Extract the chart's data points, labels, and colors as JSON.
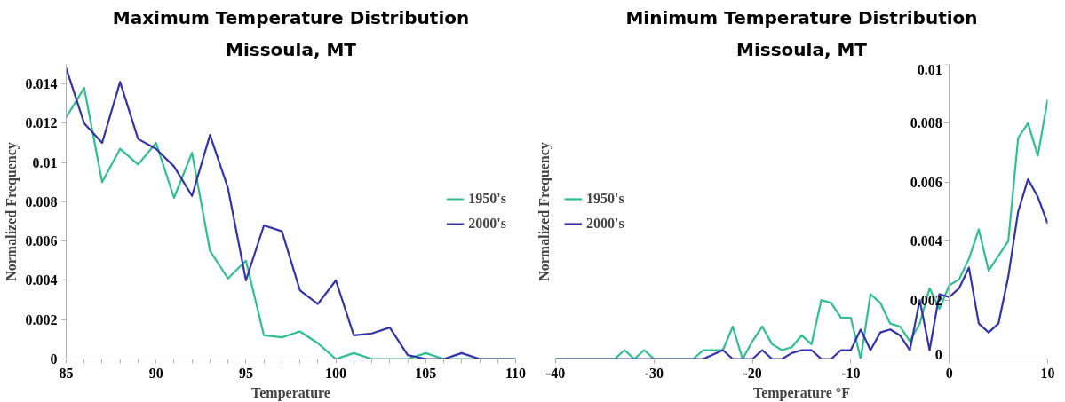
{
  "chart_data": [
    {
      "type": "line",
      "title": "Maximum Temperature Distribution",
      "subtitle": "Missoula, MT",
      "xlabel": "Temperature",
      "ylabel": "Normalized Frequency",
      "x": [
        85,
        86,
        87,
        88,
        89,
        90,
        91,
        92,
        93,
        94,
        95,
        96,
        97,
        98,
        99,
        100,
        101,
        102,
        103,
        104,
        105,
        106,
        107,
        108,
        110
      ],
      "series": [
        {
          "name": "1950's",
          "color": "#2ebf91",
          "values": [
            0.0123,
            0.0138,
            0.009,
            0.0107,
            0.0099,
            0.011,
            0.0082,
            0.0105,
            0.0055,
            0.0041,
            0.005,
            0.0012,
            0.0011,
            0.0014,
            0.0008,
            0,
            0.0003,
            0,
            0,
            0,
            0.0003,
            0,
            0,
            0,
            0
          ]
        },
        {
          "name": "2000's",
          "color": "#3333aa",
          "values": [
            0.0148,
            0.012,
            0.011,
            0.0141,
            0.0112,
            0.0107,
            0.0098,
            0.0083,
            0.0114,
            0.0087,
            0.004,
            0.0068,
            0.0065,
            0.0035,
            0.0028,
            0.004,
            0.0012,
            0.0013,
            0.0016,
            0.0002,
            0,
            0,
            0.0003,
            0,
            0
          ]
        }
      ],
      "xlim": [
        85,
        110
      ],
      "ylim": [
        0,
        0.015
      ],
      "xticks": [
        85,
        {
          "value": 86,
          "label": null
        },
        {
          "value": 87,
          "label": null
        },
        {
          "value": 88,
          "label": null
        },
        {
          "value": 89,
          "label": null
        },
        90,
        {
          "value": 91,
          "label": null
        },
        {
          "value": 92,
          "label": null
        },
        {
          "value": 93,
          "label": null
        },
        {
          "value": 94,
          "label": null
        },
        95,
        {
          "value": 96,
          "label": null
        },
        {
          "value": 97,
          "label": null
        },
        {
          "value": 98,
          "label": null
        },
        {
          "value": 99,
          "label": null
        },
        100,
        {
          "value": 101,
          "label": null
        },
        {
          "value": 102,
          "label": null
        },
        {
          "value": 103,
          "label": null
        },
        {
          "value": 104,
          "label": null
        },
        105,
        {
          "value": 106,
          "label": null
        },
        {
          "value": 107,
          "label": null
        },
        {
          "value": 108,
          "label": null
        },
        {
          "value": 109,
          "label": null
        },
        110
      ],
      "yticks": [
        0,
        0.002,
        0.004,
        0.006,
        0.008,
        0.01,
        0.012,
        0.014
      ],
      "legend": "right"
    },
    {
      "type": "line",
      "title": "Minimum Temperature Distribution",
      "subtitle": "Missoula, MT",
      "xlabel": "Temperature °F",
      "ylabel": "Normalized Frequency",
      "x": [
        -40,
        -34,
        -33,
        -32,
        -31,
        -30,
        -26,
        -25,
        -23,
        -22,
        -21,
        -20,
        -19,
        -18,
        -17,
        -16,
        -15,
        -14,
        -13,
        -12,
        -11,
        -10,
        -9,
        -8,
        -7,
        -6,
        -5,
        -4,
        -3,
        -2,
        -1,
        0,
        1,
        2,
        3,
        4,
        5,
        6,
        7,
        8,
        9,
        10
      ],
      "series": [
        {
          "name": "1950's",
          "color": "#2ebf91",
          "values": [
            0,
            0,
            0.0003,
            0,
            0.0003,
            0,
            0,
            0.0003,
            0.0003,
            0.0011,
            0,
            0.0006,
            0.0011,
            0.0005,
            0.0003,
            0.0004,
            0.0008,
            0.0005,
            0.002,
            0.0019,
            0.0014,
            0.0014,
            0,
            0.0022,
            0.0019,
            0.0012,
            0.0011,
            0.0006,
            0.0012,
            0.0024,
            0.0017,
            0.0025,
            0.0027,
            0.0034,
            0.0044,
            0.003,
            0.0035,
            0.004,
            0.0075,
            0.008,
            0.0069,
            0.0088
          ]
        },
        {
          "name": "2000's",
          "color": "#3333aa",
          "values": [
            0,
            0,
            0,
            0,
            0,
            0,
            0,
            0,
            0.0003,
            0,
            0,
            0,
            0.0003,
            0,
            0,
            0.0002,
            0.0003,
            0.0003,
            0,
            0,
            0.0003,
            0.0003,
            0.001,
            0.0003,
            0.0009,
            0.001,
            0.0008,
            0.0003,
            0.002,
            0.0003,
            0.0022,
            0.0021,
            0.0024,
            0.0031,
            0.0012,
            0.0009,
            0.0012,
            0.0028,
            0.005,
            0.0061,
            0.0055,
            0.0046
          ]
        }
      ],
      "xlim": [
        -40,
        10
      ],
      "ylim": [
        0,
        0.01
      ],
      "xticks": [
        -40,
        -30,
        -20,
        -10,
        0,
        10
      ],
      "yticks": [
        0,
        0.002,
        0.004,
        0.006,
        0.008,
        0.01
      ],
      "legend": "left"
    }
  ]
}
